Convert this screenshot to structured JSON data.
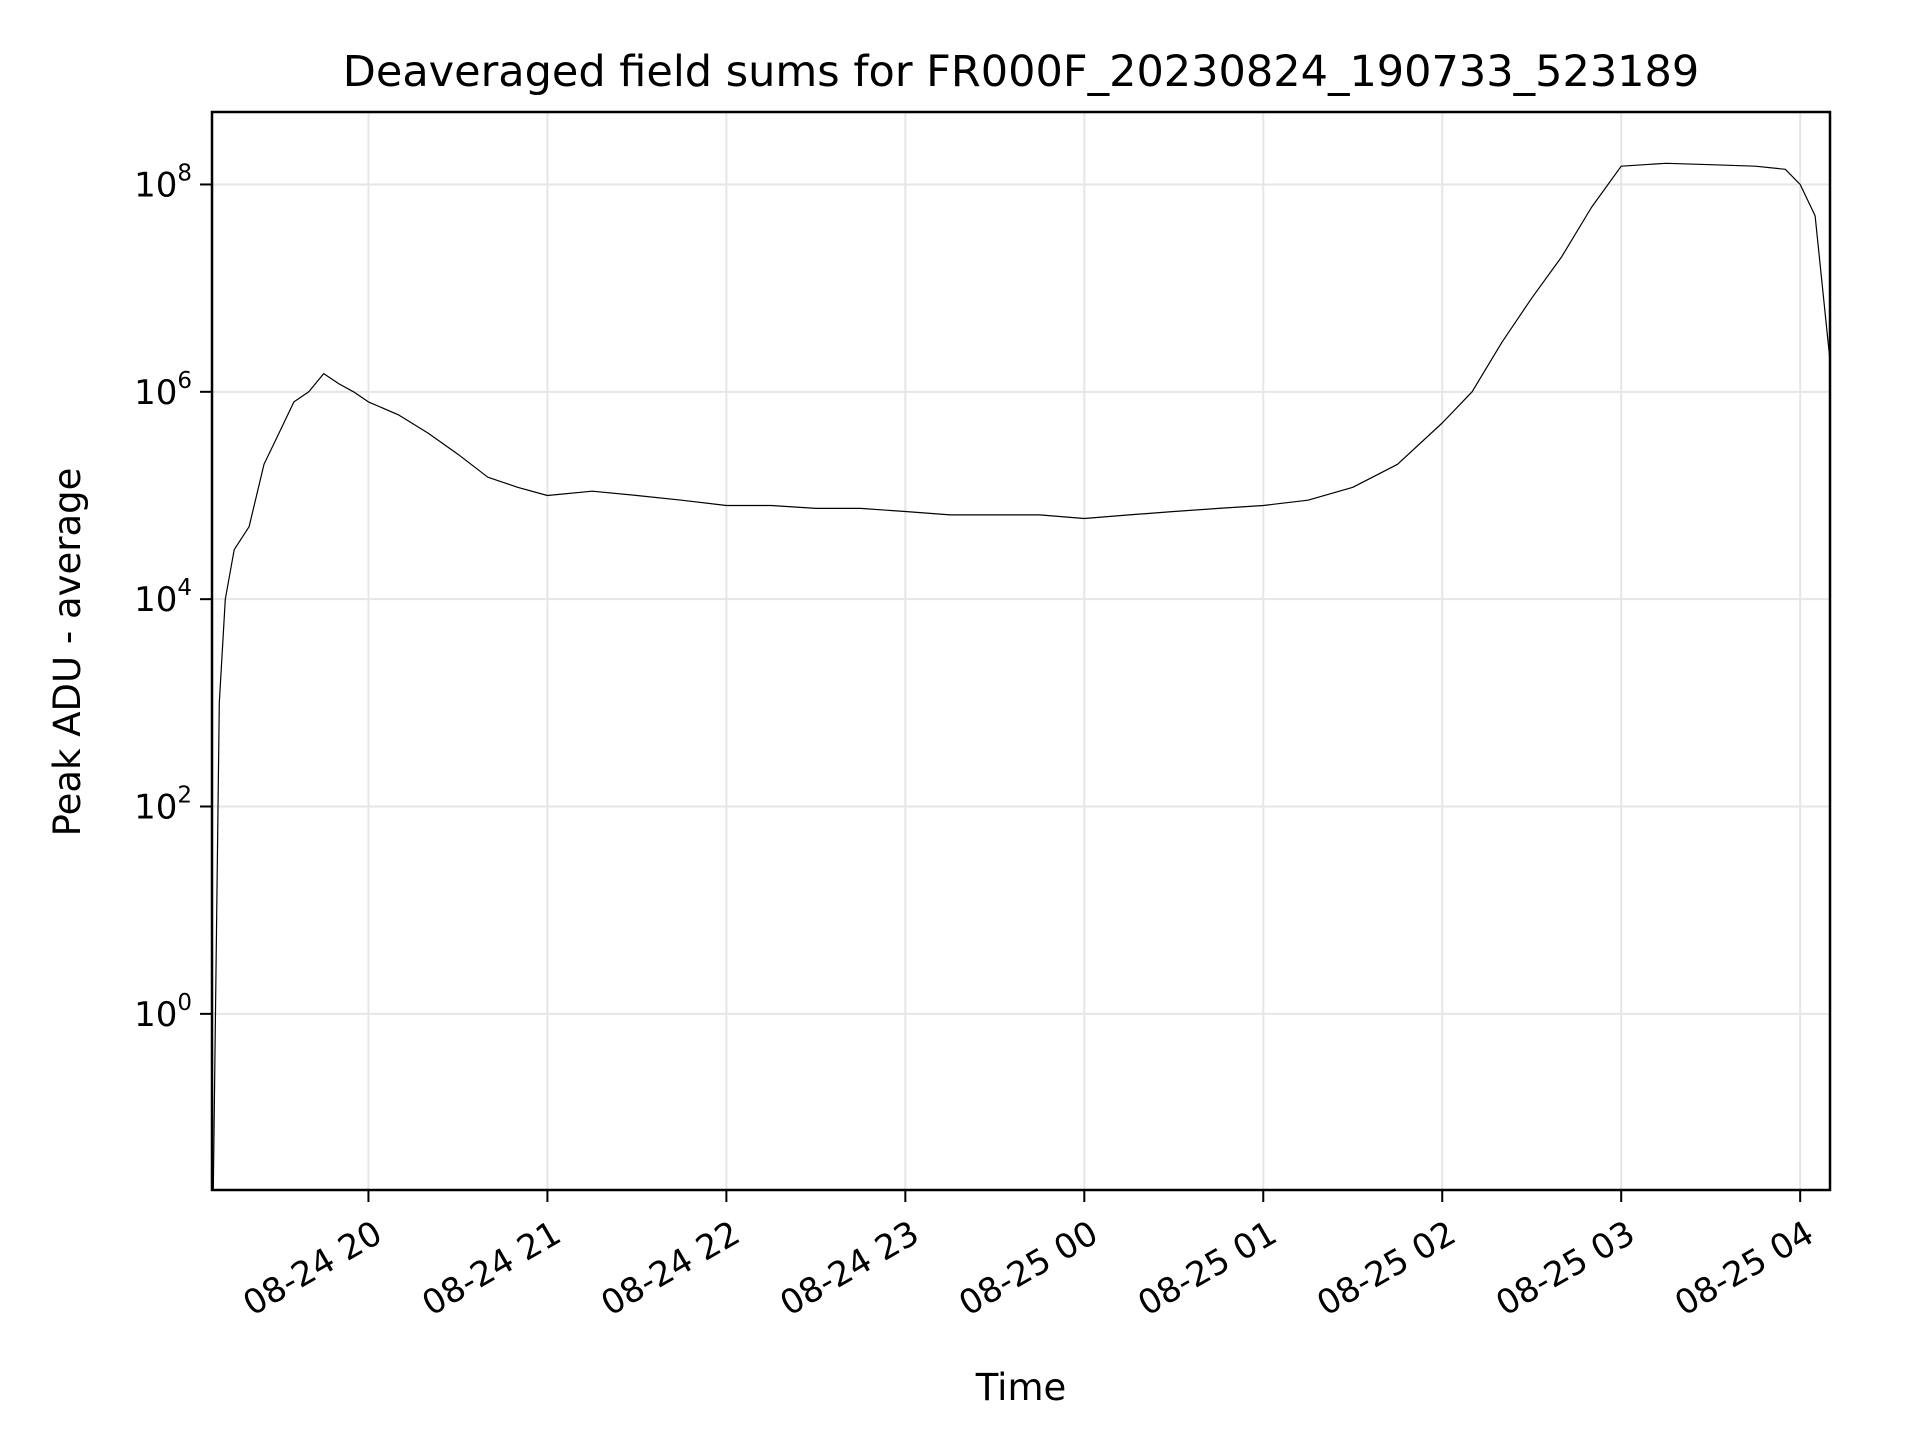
{
  "chart_data": {
    "type": "line",
    "title": "Deaveraged field sums for FR000F_20230824_190733_523189",
    "xlabel": "Time",
    "ylabel": "Peak ADU - average",
    "yscale": "log",
    "xlim": [
      "2023-08-24T19:07:33",
      "2023-08-25T04:10:00"
    ],
    "ylim": [
      0.02,
      500000000
    ],
    "grid": true,
    "line_color": "#000000",
    "x_ticks": [
      {
        "value": "2023-08-24T20:00:00",
        "label": "08-24 20"
      },
      {
        "value": "2023-08-24T21:00:00",
        "label": "08-24 21"
      },
      {
        "value": "2023-08-24T22:00:00",
        "label": "08-24 22"
      },
      {
        "value": "2023-08-24T23:00:00",
        "label": "08-24 23"
      },
      {
        "value": "2023-08-25T00:00:00",
        "label": "08-25 00"
      },
      {
        "value": "2023-08-25T01:00:00",
        "label": "08-25 01"
      },
      {
        "value": "2023-08-25T02:00:00",
        "label": "08-25 02"
      },
      {
        "value": "2023-08-25T03:00:00",
        "label": "08-25 03"
      },
      {
        "value": "2023-08-25T04:00:00",
        "label": "08-25 04"
      }
    ],
    "y_ticks": [
      {
        "value": 1,
        "base": "10",
        "exp": "0"
      },
      {
        "value": 100,
        "base": "10",
        "exp": "2"
      },
      {
        "value": 10000,
        "base": "10",
        "exp": "4"
      },
      {
        "value": 1000000,
        "base": "10",
        "exp": "6"
      },
      {
        "value": 100000000,
        "base": "10",
        "exp": "8"
      }
    ],
    "series": [
      {
        "x": [
          "2023-08-24T19:08:00",
          "2023-08-24T19:10:00",
          "2023-08-24T19:12:00",
          "2023-08-24T19:15:00",
          "2023-08-24T19:20:00",
          "2023-08-24T19:25:00",
          "2023-08-24T19:30:00",
          "2023-08-24T19:35:00",
          "2023-08-24T19:40:00",
          "2023-08-24T19:45:00",
          "2023-08-24T19:50:00",
          "2023-08-24T19:55:00",
          "2023-08-24T20:00:00",
          "2023-08-24T20:10:00",
          "2023-08-24T20:20:00",
          "2023-08-24T20:30:00",
          "2023-08-24T20:40:00",
          "2023-08-24T20:50:00",
          "2023-08-24T21:00:00",
          "2023-08-24T21:15:00",
          "2023-08-24T21:30:00",
          "2023-08-24T21:45:00",
          "2023-08-24T22:00:00",
          "2023-08-24T22:15:00",
          "2023-08-24T22:30:00",
          "2023-08-24T22:45:00",
          "2023-08-24T23:00:00",
          "2023-08-24T23:15:00",
          "2023-08-24T23:30:00",
          "2023-08-24T23:45:00",
          "2023-08-25T00:00:00",
          "2023-08-25T00:15:00",
          "2023-08-25T00:30:00",
          "2023-08-25T00:45:00",
          "2023-08-25T01:00:00",
          "2023-08-25T01:15:00",
          "2023-08-25T01:30:00",
          "2023-08-25T01:45:00",
          "2023-08-25T02:00:00",
          "2023-08-25T02:10:00",
          "2023-08-25T02:20:00",
          "2023-08-25T02:30:00",
          "2023-08-25T02:40:00",
          "2023-08-25T02:50:00",
          "2023-08-25T03:00:00",
          "2023-08-25T03:15:00",
          "2023-08-25T03:30:00",
          "2023-08-25T03:45:00",
          "2023-08-25T03:55:00",
          "2023-08-25T04:00:00",
          "2023-08-25T04:05:00",
          "2023-08-25T04:10:00"
        ],
        "y": [
          0.02,
          1000,
          10000,
          30000,
          50000,
          200000,
          400000,
          800000,
          1000000,
          1500000,
          1200000,
          1000000,
          800000,
          600000,
          400000,
          250000,
          150000,
          120000,
          100000,
          110000,
          100000,
          90000,
          80000,
          80000,
          75000,
          75000,
          70000,
          65000,
          65000,
          65000,
          60000,
          65000,
          70000,
          75000,
          80000,
          90000,
          120000,
          200000,
          500000,
          1000000,
          3000000,
          8000000,
          20000000,
          60000000,
          150000000,
          160000000,
          155000000,
          150000000,
          140000000,
          100000000,
          50000000,
          2000000
        ]
      }
    ]
  }
}
